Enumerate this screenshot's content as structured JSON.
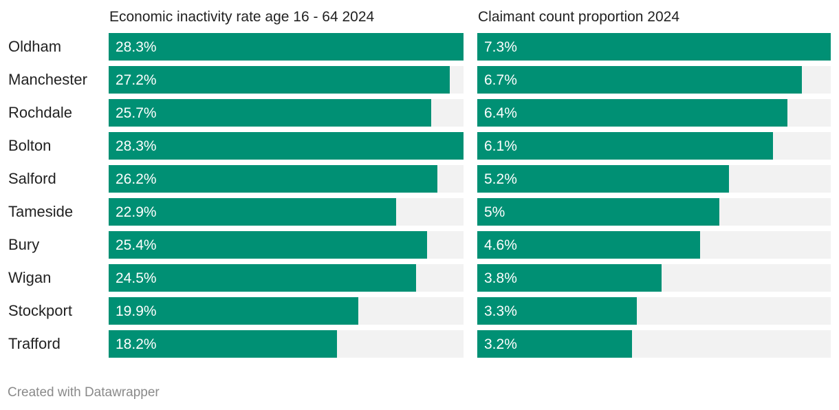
{
  "colors": {
    "bar": "#009074",
    "track": "#f2f2f2",
    "text": "#222222",
    "value_text": "#ffffff",
    "footer_text": "#8a8a8a"
  },
  "footer": {
    "credit": "Created with Datawrapper"
  },
  "chart_data": [
    {
      "type": "bar",
      "orientation": "horizontal",
      "title": "Economic inactivity rate age 16 - 64 2024",
      "categories": [
        "Oldham",
        "Manchester",
        "Rochdale",
        "Bolton",
        "Salford",
        "Tameside",
        "Bury",
        "Wigan",
        "Stockport",
        "Trafford"
      ],
      "values": [
        28.3,
        27.2,
        25.7,
        28.3,
        26.2,
        22.9,
        25.4,
        24.5,
        19.9,
        18.2
      ],
      "value_labels": [
        "28.3%",
        "27.2%",
        "25.7%",
        "28.3%",
        "26.2%",
        "22.9%",
        "25.4%",
        "24.5%",
        "19.9%",
        "18.2%"
      ],
      "unit": "%",
      "xlim": [
        0,
        28.3
      ]
    },
    {
      "type": "bar",
      "orientation": "horizontal",
      "title": "Claimant count proportion 2024",
      "categories": [
        "Oldham",
        "Manchester",
        "Rochdale",
        "Bolton",
        "Salford",
        "Tameside",
        "Bury",
        "Wigan",
        "Stockport",
        "Trafford"
      ],
      "values": [
        7.3,
        6.7,
        6.4,
        6.1,
        5.2,
        5.0,
        4.6,
        3.8,
        3.3,
        3.2
      ],
      "value_labels": [
        "7.3%",
        "6.7%",
        "6.4%",
        "6.1%",
        "5.2%",
        "5%",
        "4.6%",
        "3.8%",
        "3.3%",
        "3.2%"
      ],
      "unit": "%",
      "xlim": [
        0,
        7.3
      ]
    }
  ]
}
